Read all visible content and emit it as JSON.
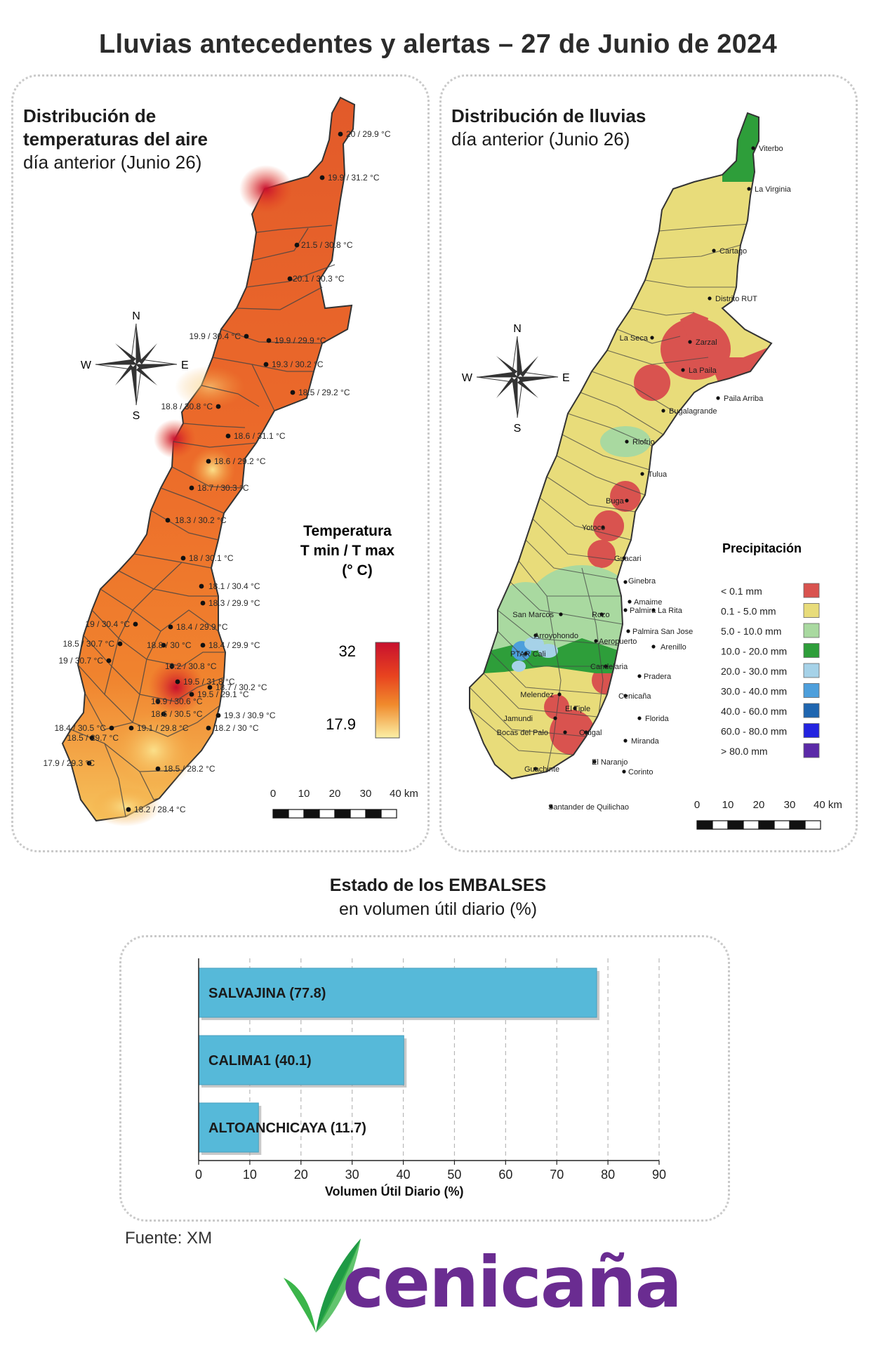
{
  "header": {
    "title": "Lluvias antecedentes y alertas – 27 de Junio de 2024"
  },
  "temperature_panel": {
    "title_bold": "Distribución de temperaturas del aire",
    "title_line1": "Distribución de",
    "title_line2": "temperaturas del aire",
    "subtitle": "día anterior (Junio 26)",
    "legend_title_1": "Temperatura",
    "legend_title_2": "T min / T max",
    "legend_title_3": "(° C)",
    "legend_max": "32",
    "legend_min": "17.9",
    "scale_labels": [
      "0",
      "10",
      "20",
      "30",
      "40 km"
    ],
    "station_labels": [
      "20 / 29.9 °C",
      "19.9 / 31.2 °C",
      "21.5 / 30.8 °C",
      "20.1 / 30.3 °C",
      "19.9 / 30.4 °C",
      "19.9 / 29.9 °C",
      "19.3 / 30.2 °C",
      "18.5 / 29.2 °C",
      "18.8 / 30.8 °C",
      "18.6 / 31.1 °C",
      "18.6 / 29.2 °C",
      "18.7 / 30.3 °C",
      "18.3 / 30.2 °C",
      "18 / 30.1 °C",
      "18.1 / 30.4 °C",
      "18.3 / 29.9 °C",
      "19 / 30.4 °C",
      "18.4 / 29.9 °C",
      "18.5 / 30.7 °C",
      "18.8 / 30 °C",
      "18.4 / 29.9 °C",
      "19 / 30.7 °C",
      "19.2 / 30.8 °C",
      "19.5 / 31.8 °C",
      "18.7 / 30.2 °C",
      "18.9 / 30.6 °C",
      "19.5 / 29.1 °C",
      "18.6 / 30.5 °C",
      "19.3 / 30.9 °C",
      "18.4 / 30.5 °C",
      "19.1 / 29.8 °C",
      "18.2 / 30 °C",
      "18.5 / 29.7 °C",
      "17.9 / 29.3 °C",
      "18.5 / 28.2 °C",
      "18.2 / 28.4 °C"
    ]
  },
  "rain_panel": {
    "title_line1": "Distribución de lluvias",
    "subtitle": "día anterior (Junio 26)",
    "legend_title": "Precipitación",
    "legend": [
      {
        "label": "< 0.1 mm",
        "color": "#d9534f"
      },
      {
        "label": "0.1 - 5.0 mm",
        "color": "#e8dc7a"
      },
      {
        "label": "5.0 - 10.0 mm",
        "color": "#a9d9a0"
      },
      {
        "label": "10.0 - 20.0 mm",
        "color": "#2e9e3a"
      },
      {
        "label": "20.0 - 30.0 mm",
        "color": "#a6d2e8"
      },
      {
        "label": "30.0 - 40.0 mm",
        "color": "#4d9fdc"
      },
      {
        "label": "40.0 - 60.0 mm",
        "color": "#1f66b0"
      },
      {
        "label": "60.0 - 80.0 mm",
        "color": "#2323e0"
      },
      {
        "label": "> 80.0 mm",
        "color": "#5b2aa8"
      }
    ],
    "scale_labels": [
      "0",
      "10",
      "20",
      "30",
      "40 km"
    ],
    "places": [
      "Viterbo",
      "La Virginia",
      "Cartago",
      "Distrito RUT",
      "La Seca",
      "Zarzal",
      "La Paila",
      "Paila Arriba",
      "Bugalagrande",
      "Riofrio",
      "Tulua",
      "Buga",
      "Yotoco",
      "Guacari",
      "Ginebra",
      "Amaime",
      "San Marcos",
      "Rozo",
      "Palmira",
      "La Rita",
      "Arroyohondo",
      "Palmira San Jose",
      "Aeropuerto",
      "Arenillo",
      "PTAR Cali",
      "Candelaria",
      "Pradera",
      "Melendez",
      "Cenicaña",
      "El Tiple",
      "Florida",
      "Jamundi",
      "Ortigal",
      "Bocas del Palo",
      "Miranda",
      "El Naranjo",
      "Guachinte",
      "Corinto",
      "Santander de Quilichao"
    ]
  },
  "compass": {
    "n": "N",
    "s": "S",
    "e": "E",
    "w": "W"
  },
  "reservoirs": {
    "title_bold": "Estado de los EMBALSES",
    "subtitle": "en volumen útil diario (%)",
    "source": "Fuente: XM"
  },
  "chart_data": {
    "type": "bar",
    "orientation": "horizontal",
    "categories": [
      "SALVAJINA (77.8)",
      "CALIMA1 (40.1)",
      "ALTOANCHICAYA (11.7)"
    ],
    "values": [
      77.8,
      40.1,
      11.7
    ],
    "xlabel": "Volumen Útil Diario (%)",
    "ylabel": "",
    "xlim": [
      0,
      90
    ],
    "xticks": [
      0,
      10,
      20,
      30,
      40,
      50,
      60,
      70,
      80,
      90
    ],
    "bar_color": "#56b9d9",
    "grid": true
  },
  "logo": {
    "text": "cenicaña",
    "leaf_color": "#3bb54a",
    "text_color": "#6a2c91"
  }
}
